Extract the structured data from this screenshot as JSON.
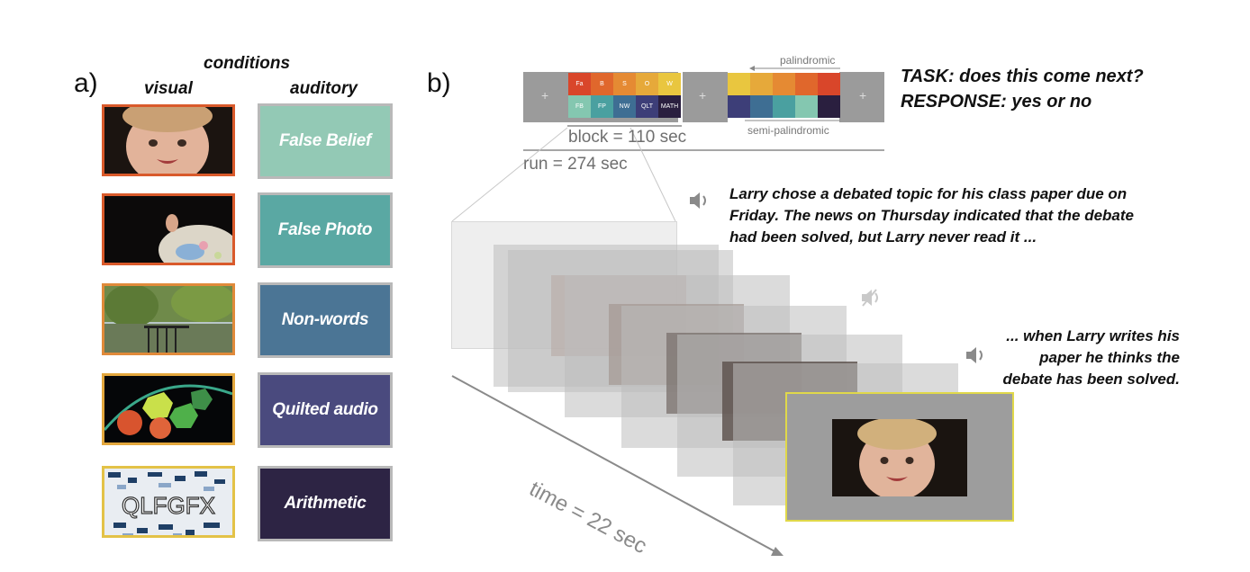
{
  "panel_a": {
    "letter": "a)",
    "conditions_header": "conditions",
    "visual_header": "visual",
    "auditory_header": "auditory",
    "conditions": [
      {
        "label": "False Belief",
        "color": "#93c9b5",
        "thumb_border": "#d95a2b"
      },
      {
        "label": "False Photo",
        "color": "#5aa8a3",
        "thumb_border": "#d95a2b"
      },
      {
        "label": "Non-words",
        "color": "#4b7595",
        "thumb_border": "#e08a3a"
      },
      {
        "label": "Quilted audio",
        "color": "#4a4a7e",
        "thumb_border": "#e3a73d"
      },
      {
        "label": "Arithmetic",
        "color": "#2d2444",
        "thumb_border": "#e3c247"
      }
    ],
    "arithmetic_thumb_text": "QLFGFX"
  },
  "panel_b": {
    "letter": "b)",
    "sequence": {
      "top_cells": [
        {
          "label": "Fa",
          "color": "#d9462a"
        },
        {
          "label": "B",
          "color": "#e0672c"
        },
        {
          "label": "S",
          "color": "#e58a33"
        },
        {
          "label": "O",
          "color": "#e6a93a"
        },
        {
          "label": "W",
          "color": "#e9c63f"
        }
      ],
      "bottom_cells": [
        {
          "label": "FB",
          "color": "#84c7b0"
        },
        {
          "label": "FP",
          "color": "#4aa0a0"
        },
        {
          "label": "NW",
          "color": "#3e6e93"
        },
        {
          "label": "QLT",
          "color": "#3d3e78"
        },
        {
          "label": "MATH",
          "color": "#2a1f3f"
        }
      ],
      "right_top_colors": [
        "#e9c63f",
        "#e6a93a",
        "#e58a33",
        "#e0672c",
        "#d9462a"
      ],
      "right_bottom_colors": [
        "#3d3e78",
        "#3e6e93",
        "#4aa0a0",
        "#84c7b0",
        "#2a1f3f"
      ],
      "plus": "+",
      "palindromic": "palindromic",
      "semi_palindromic": "semi-palindromic",
      "block": "block = 110 sec",
      "run": "run = 274 sec"
    },
    "task_line1": "TASK: does this come next?",
    "task_line2": "RESPONSE: yes or no",
    "story1": "Larry chose a debated topic for his class paper due on Friday. The news on Thursday indicated that the debate had been solved, but Larry never read it ...",
    "story2": "... when Larry writes his paper he thinks the debate has been solved.",
    "time": "time = 22 sec",
    "icons": [
      "speaker-icon",
      "speaker-muted-icon",
      "speaker-icon"
    ],
    "final_frame_border": "#e0d84a"
  }
}
